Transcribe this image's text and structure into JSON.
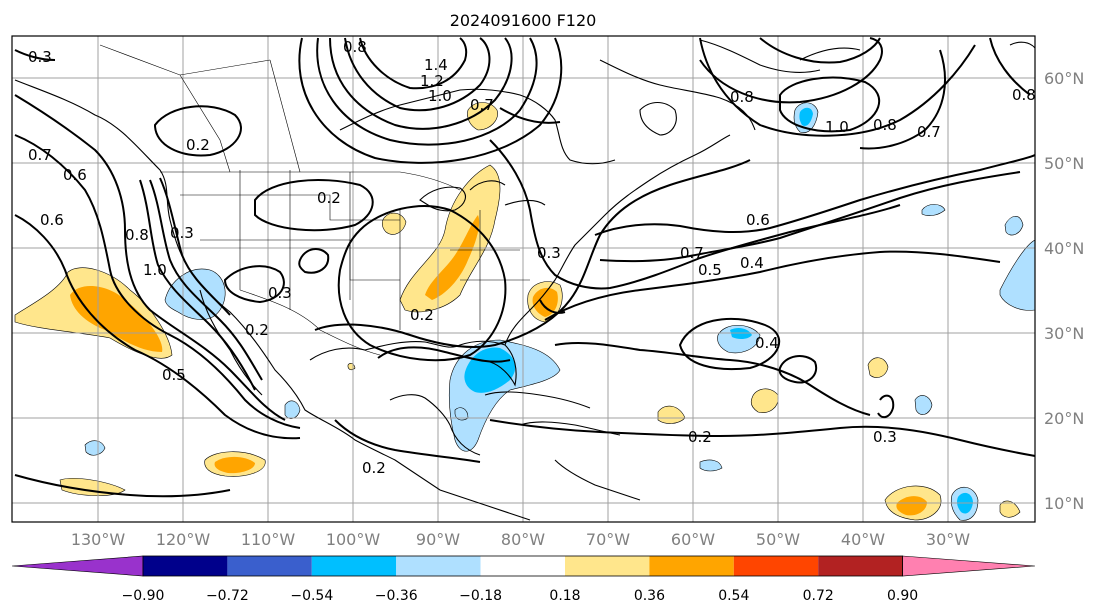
{
  "title": "2024091600 F120",
  "lon_labels": [
    "130°W",
    "120°W",
    "110°W",
    "100°W",
    "90°W",
    "80°W",
    "70°W",
    "60°W",
    "50°W",
    "40°W",
    "30°W"
  ],
  "lat_labels": [
    "60°N",
    "50°N",
    "40°N",
    "30°N",
    "20°N",
    "10°N"
  ],
  "colorbar": {
    "ticks": [
      "−0.90",
      "−0.72",
      "−0.54",
      "−0.36",
      "−0.18",
      "0.18",
      "0.36",
      "0.54",
      "0.72",
      "0.90"
    ],
    "colors": [
      "#9932cc",
      "#00008b",
      "#3a5fcd",
      "#00bfff",
      "#afe0ff",
      "#ffffff",
      "#ffe68c",
      "#ffa500",
      "#ff4500",
      "#b22222",
      "#ff80b0"
    ]
  },
  "contour_labels": [
    {
      "text": "1.4"
    },
    {
      "text": "1.2"
    },
    {
      "text": "1.0"
    },
    {
      "text": "0.7"
    },
    {
      "text": "0.8"
    },
    {
      "text": "0.2"
    },
    {
      "text": "0.2"
    },
    {
      "text": "0.3"
    },
    {
      "text": "0.6"
    },
    {
      "text": "0.7"
    },
    {
      "text": "0.6"
    },
    {
      "text": "0.8"
    },
    {
      "text": "1.0"
    },
    {
      "text": "0.3"
    },
    {
      "text": "0.3"
    },
    {
      "text": "0.2"
    },
    {
      "text": "0.2"
    },
    {
      "text": "0.5"
    },
    {
      "text": "0.7"
    },
    {
      "text": "0.5"
    },
    {
      "text": "0.4"
    },
    {
      "text": "0.6"
    },
    {
      "text": "0.8"
    },
    {
      "text": "1.0"
    },
    {
      "text": "0.8"
    },
    {
      "text": "0.7"
    },
    {
      "text": "0.4"
    },
    {
      "text": "0.2"
    },
    {
      "text": "0.2"
    },
    {
      "text": "0.3"
    },
    {
      "text": "0.3"
    },
    {
      "text": "0.8"
    }
  ],
  "colors": {
    "light_blue": "#afe0ff",
    "blue": "#00bfff",
    "light_yellow": "#ffe68c",
    "orange": "#ffa500"
  }
}
